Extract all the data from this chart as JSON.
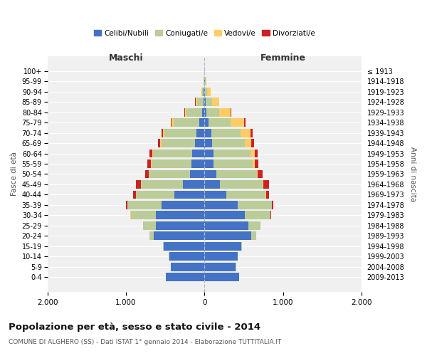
{
  "age_groups": [
    "0-4",
    "5-9",
    "10-14",
    "15-19",
    "20-24",
    "25-29",
    "30-34",
    "35-39",
    "40-44",
    "45-49",
    "50-54",
    "55-59",
    "60-64",
    "65-69",
    "70-74",
    "75-79",
    "80-84",
    "85-89",
    "90-94",
    "95-99",
    "100+"
  ],
  "birth_years": [
    "2009-2013",
    "2004-2008",
    "1999-2003",
    "1994-1998",
    "1989-1993",
    "1984-1988",
    "1979-1983",
    "1974-1978",
    "1969-1973",
    "1964-1968",
    "1959-1963",
    "1954-1958",
    "1949-1953",
    "1944-1948",
    "1939-1943",
    "1934-1938",
    "1929-1933",
    "1924-1928",
    "1919-1923",
    "1914-1918",
    "≤ 1913"
  ],
  "maschi": {
    "celibi": [
      490,
      430,
      450,
      520,
      650,
      620,
      620,
      550,
      380,
      270,
      185,
      165,
      155,
      120,
      100,
      65,
      30,
      15,
      8,
      4,
      2
    ],
    "coniugati": [
      1,
      1,
      2,
      10,
      50,
      160,
      320,
      430,
      490,
      540,
      520,
      510,
      500,
      430,
      410,
      330,
      200,
      80,
      25,
      8,
      2
    ],
    "vedovi": [
      0,
      0,
      0,
      0,
      1,
      1,
      1,
      1,
      2,
      2,
      3,
      5,
      8,
      10,
      15,
      20,
      20,
      20,
      8,
      2,
      0
    ],
    "divorziati": [
      0,
      0,
      0,
      0,
      0,
      2,
      5,
      15,
      40,
      60,
      50,
      45,
      35,
      30,
      20,
      10,
      5,
      2,
      0,
      0,
      0
    ]
  },
  "femmine": {
    "nubili": [
      440,
      400,
      420,
      470,
      600,
      560,
      510,
      420,
      280,
      200,
      155,
      120,
      120,
      100,
      90,
      55,
      25,
      15,
      10,
      5,
      2
    ],
    "coniugate": [
      1,
      1,
      3,
      10,
      55,
      155,
      330,
      440,
      500,
      540,
      510,
      490,
      470,
      410,
      370,
      280,
      160,
      80,
      25,
      8,
      1
    ],
    "vedove": [
      0,
      0,
      0,
      0,
      1,
      1,
      2,
      3,
      5,
      8,
      15,
      30,
      50,
      90,
      130,
      170,
      150,
      90,
      40,
      10,
      1
    ],
    "divorziate": [
      0,
      0,
      0,
      0,
      0,
      2,
      5,
      15,
      40,
      70,
      60,
      50,
      40,
      30,
      20,
      15,
      8,
      2,
      0,
      0,
      0
    ]
  },
  "colors": {
    "celibi_nubili": "#4472C4",
    "coniugati_e": "#BBCC99",
    "vedovi_e": "#FFCC66",
    "divorziati_e": "#CC2222"
  },
  "xlim": 2000,
  "title": "Popolazione per età, sesso e stato civile - 2014",
  "subtitle": "COMUNE DI ALGHERO (SS) - Dati ISTAT 1° gennaio 2014 - Elaborazione TUTTITALIA.IT",
  "xlabel_left": "Maschi",
  "xlabel_right": "Femmine",
  "ylabel_left": "Fasce di età",
  "ylabel_right": "Anni di nascita",
  "bg_color": "#FFFFFF",
  "plot_bg": "#F0F0F0",
  "grid_color": "#FFFFFF"
}
